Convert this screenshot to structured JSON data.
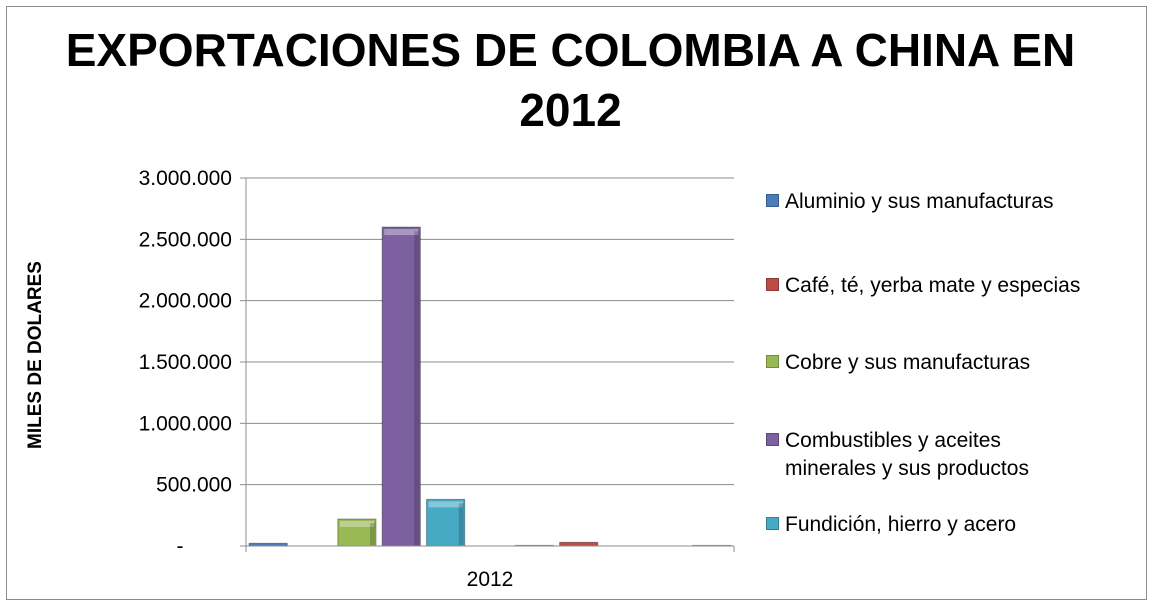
{
  "chart_data": {
    "type": "bar",
    "title_lines": [
      "EXPORTACIONES  DE COLOMBIA A CHINA EN",
      "2012"
    ],
    "xlabel": "",
    "ylabel": "MILES DE DOLARES",
    "categories": [
      "2012"
    ],
    "ylim": [
      0,
      3000000
    ],
    "yticks": [
      0,
      500000,
      1000000,
      1500000,
      2000000,
      2500000,
      3000000
    ],
    "ytick_labels": [
      "-",
      "500.000",
      "1.000.000",
      "1.500.000",
      "2.000.000",
      "2.500.000",
      "3.000.000"
    ],
    "grid": true,
    "legend_position": "right",
    "series": [
      {
        "name": "Aluminio y sus manufacturas",
        "values": [
          22000
        ],
        "color": "#4a7ebb"
      },
      {
        "name": "",
        "values": [
          0
        ],
        "color": "#be4b48"
      },
      {
        "name": "Cobre y sus manufacturas",
        "values": [
          220000
        ],
        "color": "#98b954"
      },
      {
        "name": "Combustibles y aceites minerales y sus productos",
        "values": [
          2600000
        ],
        "color": "#7d60a0"
      },
      {
        "name": "Fundición, hierro y acero",
        "values": [
          380000
        ],
        "color": "#46aac5"
      },
      {
        "name": "",
        "values": [
          0
        ],
        "color": "#f79646"
      },
      {
        "name": "",
        "values": [
          5000
        ],
        "color": "#2c4d75"
      },
      {
        "name": "Café, té, yerba mate y especias",
        "values": [
          30000
        ],
        "color": "#be4b48"
      },
      {
        "name": "",
        "values": [
          0
        ],
        "color": "#98b954"
      },
      {
        "name": "",
        "values": [
          0
        ],
        "color": "#7d60a0"
      },
      {
        "name": "",
        "values": [
          5000
        ],
        "color": "#4a7ebb"
      }
    ]
  },
  "legend": {
    "items": [
      {
        "label": "Aluminio y sus manufacturas",
        "color": "#4a7ebb"
      },
      {
        "label": "Café, té, yerba mate y especias",
        "color": "#be4b48"
      },
      {
        "label": "Cobre y sus manufacturas",
        "color": "#98b954"
      },
      {
        "label": "Combustibles y aceites minerales y sus productos",
        "color": "#7d60a0"
      },
      {
        "label": "Fundición, hierro y acero",
        "color": "#46aac5"
      }
    ]
  }
}
